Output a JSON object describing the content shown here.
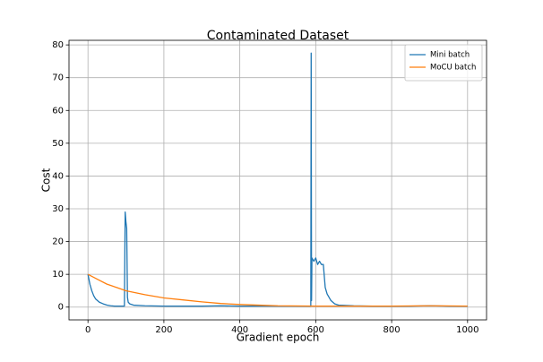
{
  "chart_data": {
    "type": "line",
    "title": "Contaminated Dataset",
    "xlabel": "Gradient epoch",
    "ylabel": "Cost",
    "series": [
      {
        "name": "Mini batch",
        "color": "#1f77b4",
        "x": [
          0,
          5,
          10,
          15,
          20,
          30,
          40,
          50,
          60,
          70,
          80,
          90,
          96,
          98,
          100,
          102,
          104,
          106,
          110,
          120,
          150,
          200,
          250,
          300,
          350,
          400,
          450,
          500,
          550,
          585,
          587,
          588,
          589,
          590,
          595,
          600,
          605,
          610,
          615,
          620,
          625,
          630,
          640,
          650,
          660,
          680,
          700,
          750,
          800,
          850,
          900,
          950,
          1000
        ],
        "values": [
          10,
          7,
          5,
          3.5,
          2.5,
          1.5,
          1,
          0.6,
          0.4,
          0.3,
          0.3,
          0.3,
          0.3,
          29,
          26,
          24,
          3,
          1.5,
          1,
          0.6,
          0.4,
          0.3,
          0.3,
          0.3,
          0.4,
          0.3,
          0.3,
          0.3,
          0.3,
          0.3,
          0.3,
          77.5,
          2,
          15,
          14,
          15,
          13,
          14,
          13,
          13,
          6,
          4,
          2,
          1,
          0.6,
          0.5,
          0.4,
          0.3,
          0.3,
          0.3,
          0.4,
          0.3,
          0.3
        ]
      },
      {
        "name": "MoCU batch",
        "color": "#ff7f0e",
        "x": [
          0,
          25,
          50,
          75,
          100,
          150,
          200,
          250,
          300,
          350,
          400,
          450,
          500,
          600,
          700,
          800,
          900,
          1000
        ],
        "values": [
          10,
          8.5,
          7,
          6,
          5,
          3.8,
          2.8,
          2.2,
          1.6,
          1.1,
          0.8,
          0.6,
          0.4,
          0.3,
          0.3,
          0.3,
          0.4,
          0.3
        ]
      }
    ],
    "xlim": [
      -50,
      1050
    ],
    "xticks": [
      0,
      200,
      400,
      600,
      800,
      1000
    ],
    "ylim": [
      -3.9,
      81.4
    ],
    "yticks": [
      0,
      10,
      20,
      30,
      40,
      50,
      60,
      70,
      80
    ],
    "grid": true,
    "legend": "upper right"
  }
}
